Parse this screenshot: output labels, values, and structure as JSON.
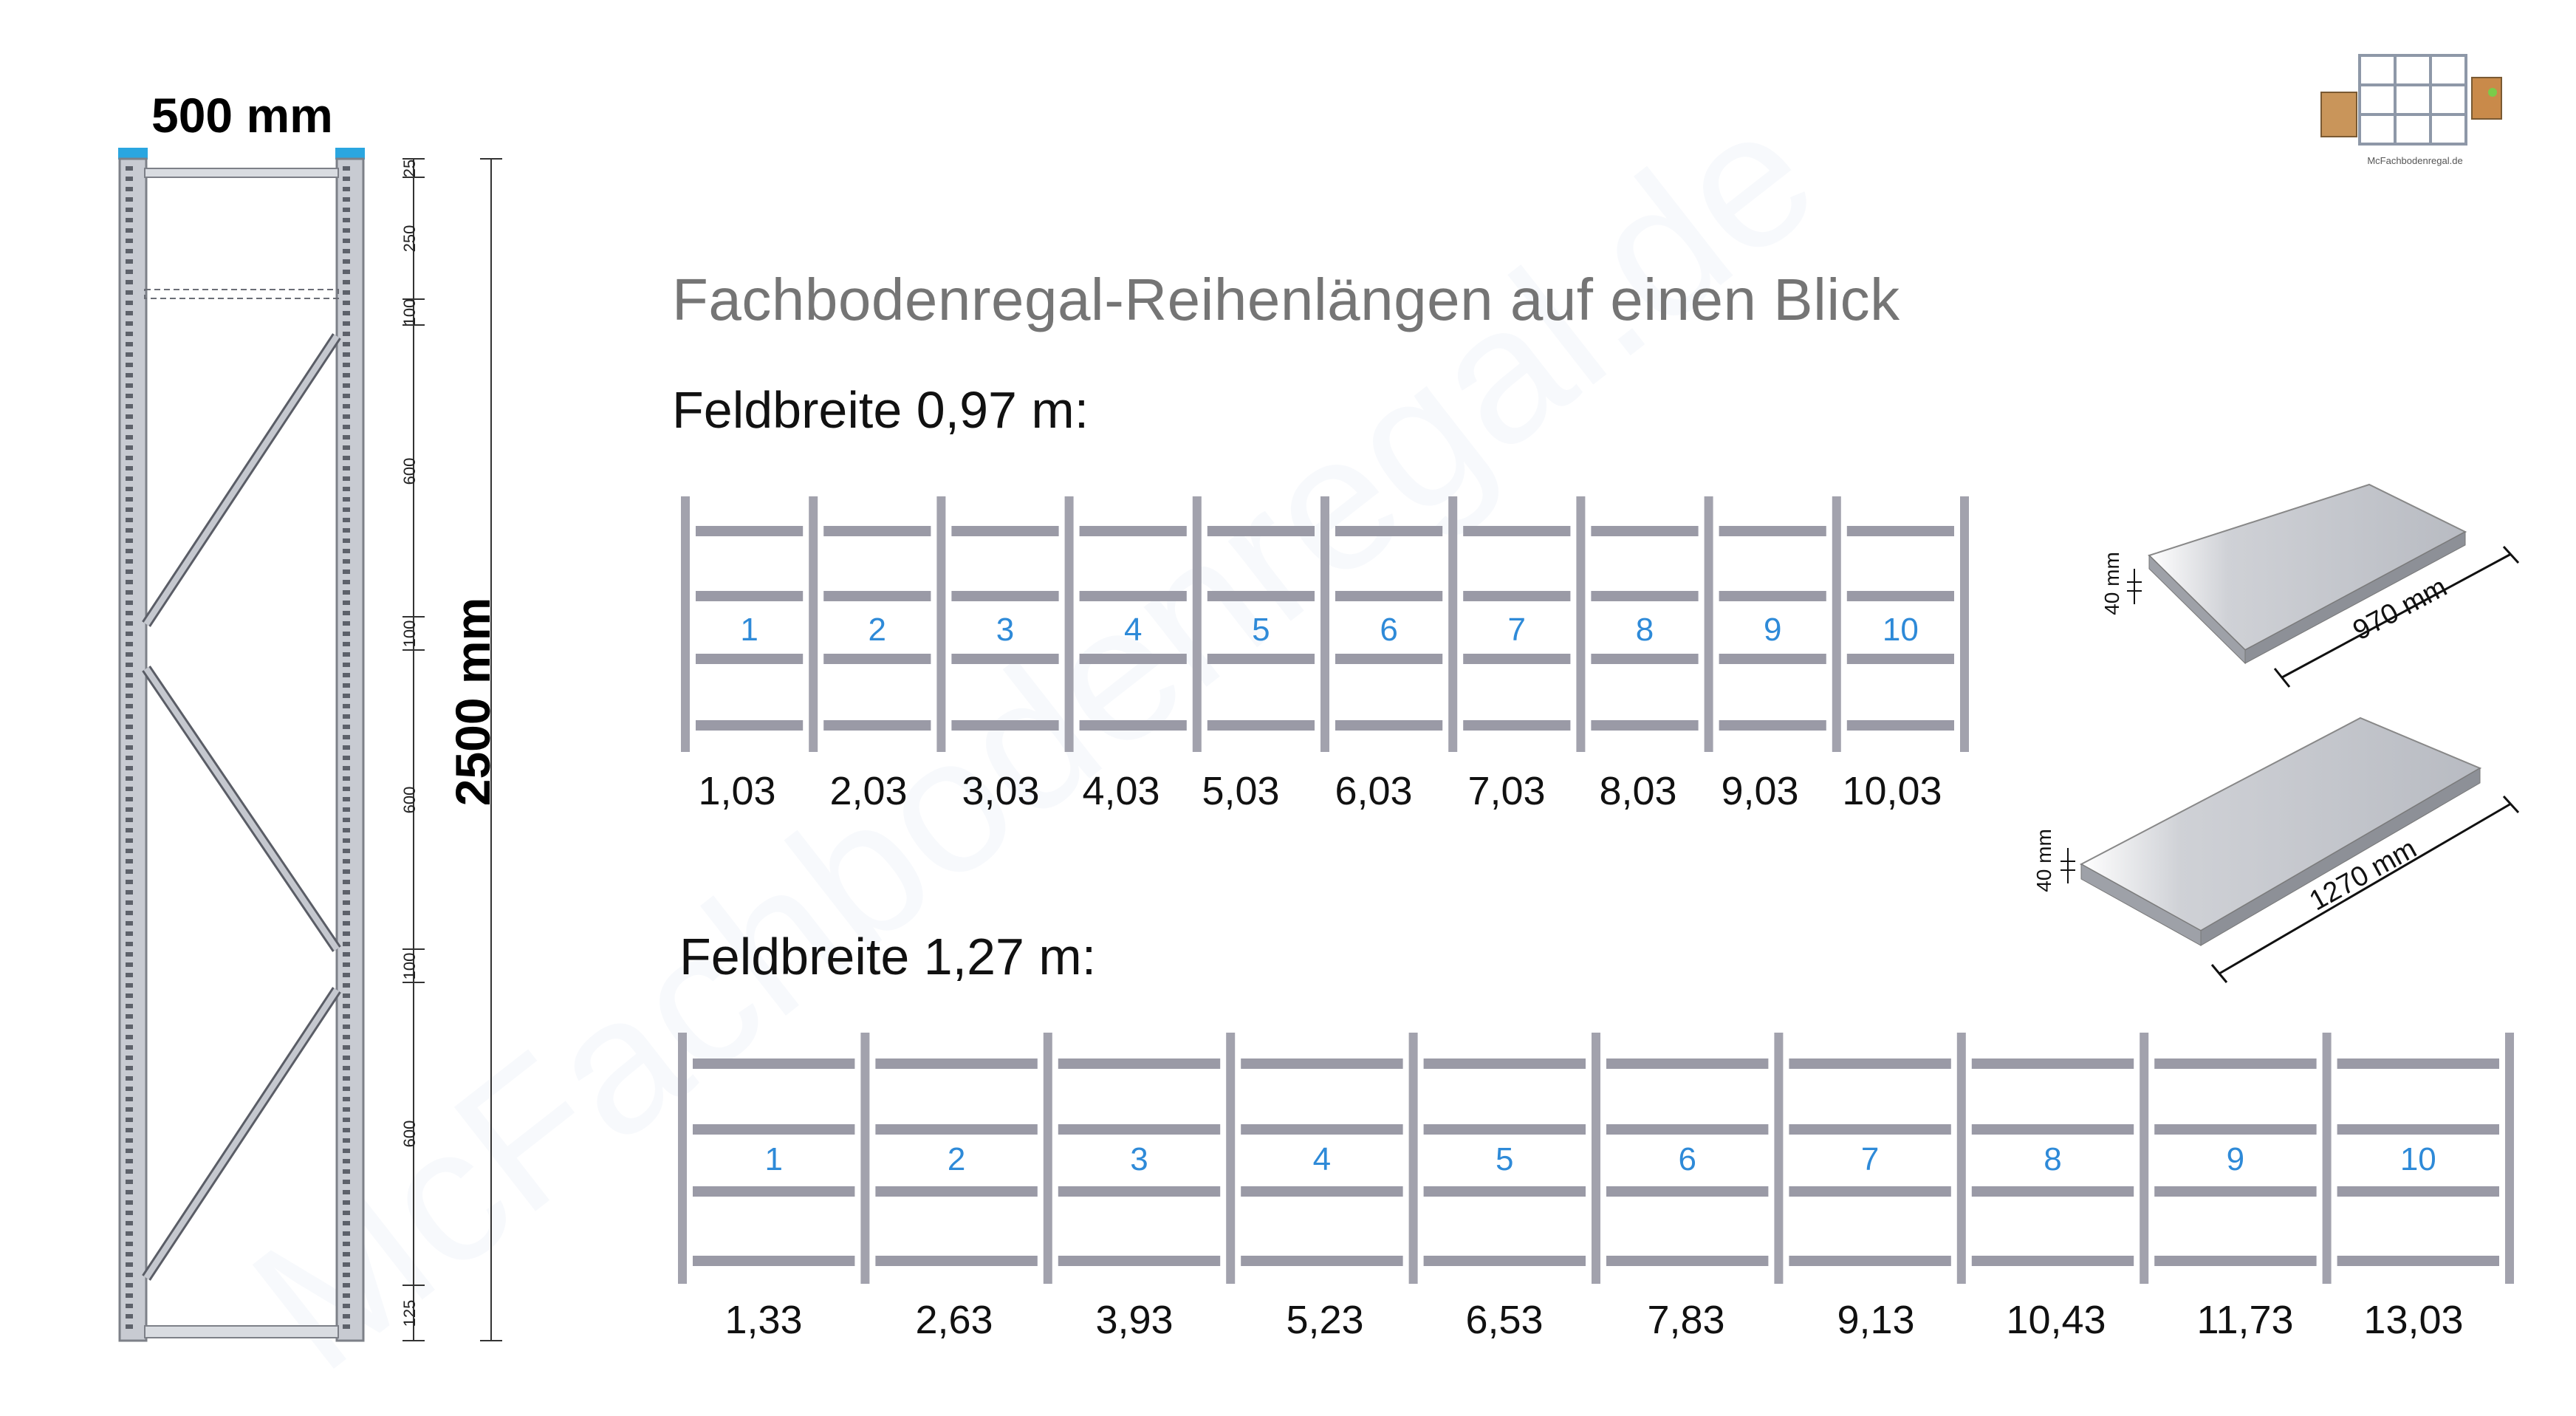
{
  "title": "Fachbodenregal-Reihenlängen auf einen Blick",
  "frame": {
    "width_label": "500 mm",
    "height_label": "2500 mm",
    "segments": [
      "25",
      "250",
      "100",
      "600",
      "100",
      "600",
      "100",
      "600",
      "125"
    ]
  },
  "field_097": {
    "heading": "Feldbreite 0,97 m:",
    "numbers": [
      "1",
      "2",
      "3",
      "4",
      "5",
      "6",
      "7",
      "8",
      "9",
      "10"
    ],
    "lengths": [
      "1,03",
      "2,03",
      "3,03",
      "4,03",
      "5,03",
      "6,03",
      "7,03",
      "8,03",
      "9,03",
      "10,03"
    ]
  },
  "field_127": {
    "heading": "Feldbreite 1,27 m:",
    "numbers": [
      "1",
      "2",
      "3",
      "4",
      "5",
      "6",
      "7",
      "8",
      "9",
      "10"
    ],
    "lengths": [
      "1,33",
      "2,63",
      "3,93",
      "5,23",
      "6,53",
      "7,83",
      "9,13",
      "10,43",
      "11,73",
      "13,03"
    ]
  },
  "shelf_small": {
    "length": "970 mm",
    "thickness": "40 mm"
  },
  "shelf_large": {
    "length": "1270 mm",
    "thickness": "40 mm"
  },
  "logo": {
    "caption": "McFachbodenregal.de"
  },
  "watermark": "McFachbodenregal.de",
  "colors": {
    "upright": "#a2a2ad",
    "shelf": "#9a9aa6",
    "number": "#2e8ad8",
    "title": "#757575",
    "frame_cap": "#2aa6e0"
  }
}
